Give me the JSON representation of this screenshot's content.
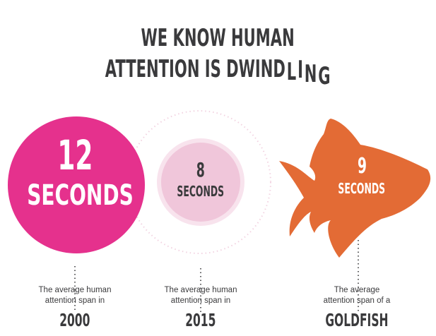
{
  "title": {
    "line1": "WE KNOW HUMAN",
    "line2_main": "ATTENTION IS DWIND",
    "line2_tail": [
      "L",
      "I",
      "N",
      "G"
    ]
  },
  "colors": {
    "pink": "#e5318d",
    "light_pink": "#f0c6da",
    "ring": "#f8e3ed",
    "orange": "#e36b35",
    "text": "#3a3a3c"
  },
  "items": [
    {
      "value": "12",
      "unit": "SECONDS",
      "caption_line1": "The average human",
      "caption_line2": "attention span in",
      "label": "2000"
    },
    {
      "value": "8",
      "unit": "SECONDS",
      "caption_line1": "The average human",
      "caption_line2": "attention span in",
      "label": "2015"
    },
    {
      "value": "9",
      "unit": "SECONDS",
      "caption_line1": "The average",
      "caption_line2": "attention span of a",
      "label": "GOLDFISH",
      "icon": "goldfish-icon"
    }
  ]
}
